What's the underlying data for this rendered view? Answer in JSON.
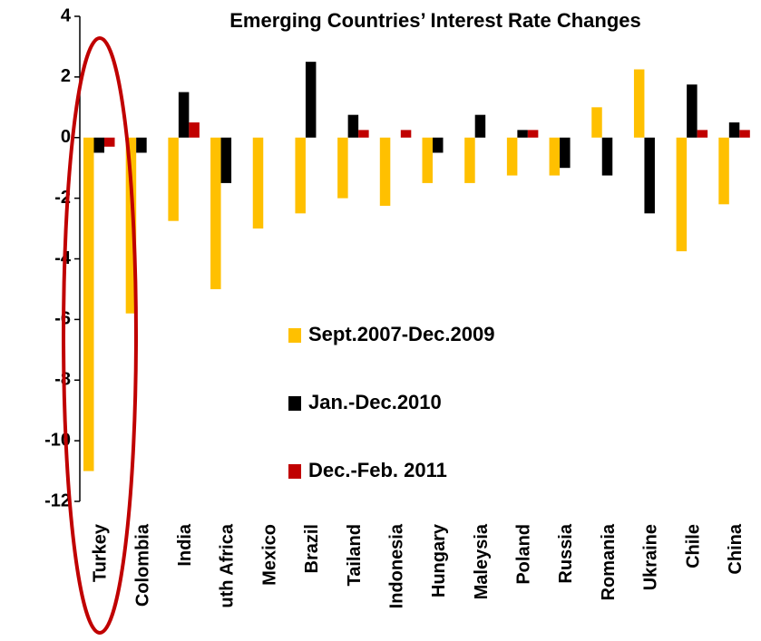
{
  "chart_data": {
    "type": "bar",
    "title": "Emerging Countries’ Interest Rate Changes",
    "categories": [
      "Turkey",
      "Colombia",
      "India",
      "uth Africa",
      "Mexico",
      "Brazil",
      "Tailand",
      "Indonesia",
      "Hungary",
      "Maleysia",
      "Poland",
      "Russia",
      "Romania",
      "Ukraine",
      "Chile",
      "China"
    ],
    "series": [
      {
        "name": "Sept.2007-Dec.2009",
        "color": "#ffc000",
        "values": [
          -11,
          -5.8,
          -2.75,
          -5,
          -3,
          -2.5,
          -2,
          -2.25,
          -1.5,
          -1.5,
          -1.25,
          -1.25,
          1,
          2.25,
          -3.75,
          -2.2
        ]
      },
      {
        "name": "Jan.-Dec.2010",
        "color": "#000000",
        "values": [
          -0.5,
          -0.5,
          1.5,
          -1.5,
          0,
          2.5,
          0.75,
          0,
          -0.5,
          0.75,
          0.25,
          -1,
          -1.25,
          -2.5,
          1.75,
          0.5
        ]
      },
      {
        "name": "Dec.-Feb. 2011",
        "color": "#c00000",
        "values": [
          -0.3,
          0,
          0.5,
          0,
          0,
          0,
          0.25,
          0.25,
          0,
          0,
          0.25,
          0,
          0,
          0,
          0.25,
          0.25
        ]
      }
    ],
    "ylim": [
      -12,
      4
    ],
    "yticks": [
      -12,
      -10,
      -8,
      -6,
      -4,
      -2,
      0,
      2,
      4
    ],
    "grid": false
  }
}
